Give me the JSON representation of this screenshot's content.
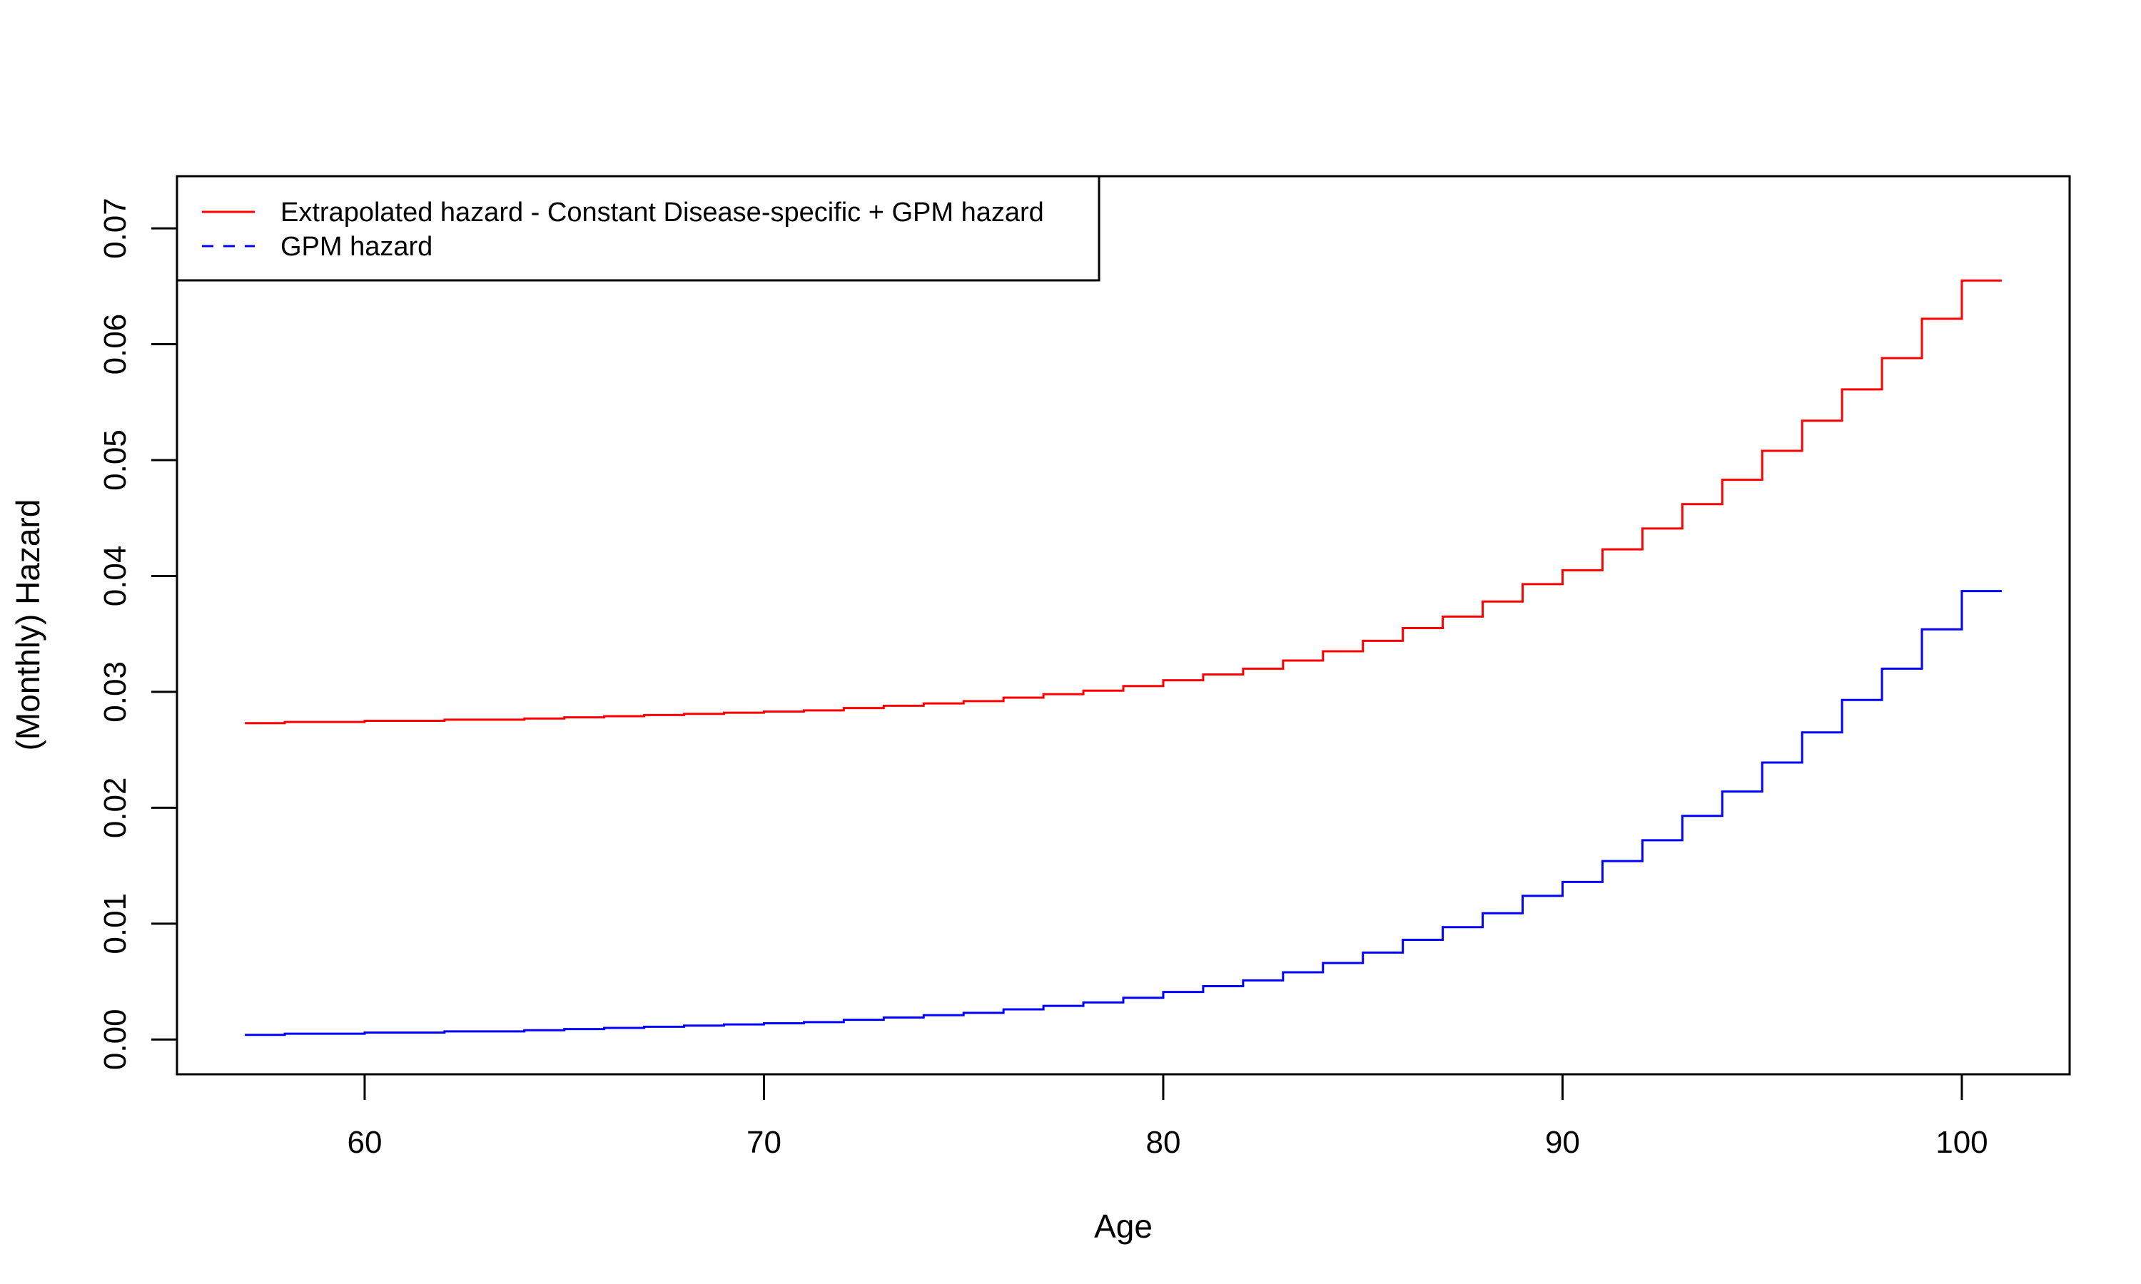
{
  "chart_data": {
    "type": "line",
    "title": "",
    "xlabel": "Age",
    "ylabel": "(Monthly) Hazard",
    "xlim": [
      55.3,
      102.7
    ],
    "ylim": [
      -0.003,
      0.0745
    ],
    "xticks": [
      60,
      70,
      80,
      90,
      100
    ],
    "xtick_labels": [
      "60",
      "70",
      "80",
      "90",
      "100"
    ],
    "yticks": [
      0,
      0.01,
      0.02,
      0.03,
      0.04,
      0.05,
      0.06,
      0.07
    ],
    "ytick_labels": [
      "0.00",
      "0.01",
      "0.02",
      "0.03",
      "0.04",
      "0.05",
      "0.06",
      "0.07"
    ],
    "grid": false,
    "legend_position": "top-left",
    "step": true,
    "x": [
      57,
      58,
      59,
      60,
      61,
      62,
      63,
      64,
      65,
      66,
      67,
      68,
      69,
      70,
      71,
      72,
      73,
      74,
      75,
      76,
      77,
      78,
      79,
      80,
      81,
      82,
      83,
      84,
      85,
      86,
      87,
      88,
      89,
      90,
      91,
      92,
      93,
      94,
      95,
      96,
      97,
      98,
      99,
      100
    ],
    "x_end": 101,
    "series": [
      {
        "name": "Extrapolated hazard - Constant Disease-specific + GPM hazard",
        "color": "#ff0000",
        "line_style": "solid",
        "values": [
          0.0273,
          0.0274,
          0.0274,
          0.0275,
          0.0275,
          0.0276,
          0.0276,
          0.0277,
          0.0278,
          0.0279,
          0.028,
          0.0281,
          0.0282,
          0.0283,
          0.0284,
          0.0286,
          0.0288,
          0.029,
          0.0292,
          0.0295,
          0.0298,
          0.0301,
          0.0305,
          0.031,
          0.0315,
          0.032,
          0.0327,
          0.0335,
          0.0344,
          0.0355,
          0.0365,
          0.0378,
          0.0393,
          0.0405,
          0.0423,
          0.0441,
          0.0462,
          0.0483,
          0.0508,
          0.0534,
          0.0561,
          0.0588,
          0.0622,
          0.0655
        ]
      },
      {
        "name": "GPM hazard",
        "color": "#0000ff",
        "line_style": "dashed",
        "values": [
          0.0004,
          0.0005,
          0.0005,
          0.0006,
          0.0006,
          0.0007,
          0.0007,
          0.0008,
          0.0009,
          0.001,
          0.0011,
          0.0012,
          0.0013,
          0.0014,
          0.0015,
          0.0017,
          0.0019,
          0.0021,
          0.0023,
          0.0026,
          0.0029,
          0.0032,
          0.0036,
          0.0041,
          0.0046,
          0.0051,
          0.0058,
          0.0066,
          0.0075,
          0.0086,
          0.0097,
          0.0109,
          0.0124,
          0.0136,
          0.0154,
          0.0172,
          0.0193,
          0.0214,
          0.0239,
          0.0265,
          0.0293,
          0.032,
          0.0354,
          0.0387
        ]
      }
    ]
  }
}
